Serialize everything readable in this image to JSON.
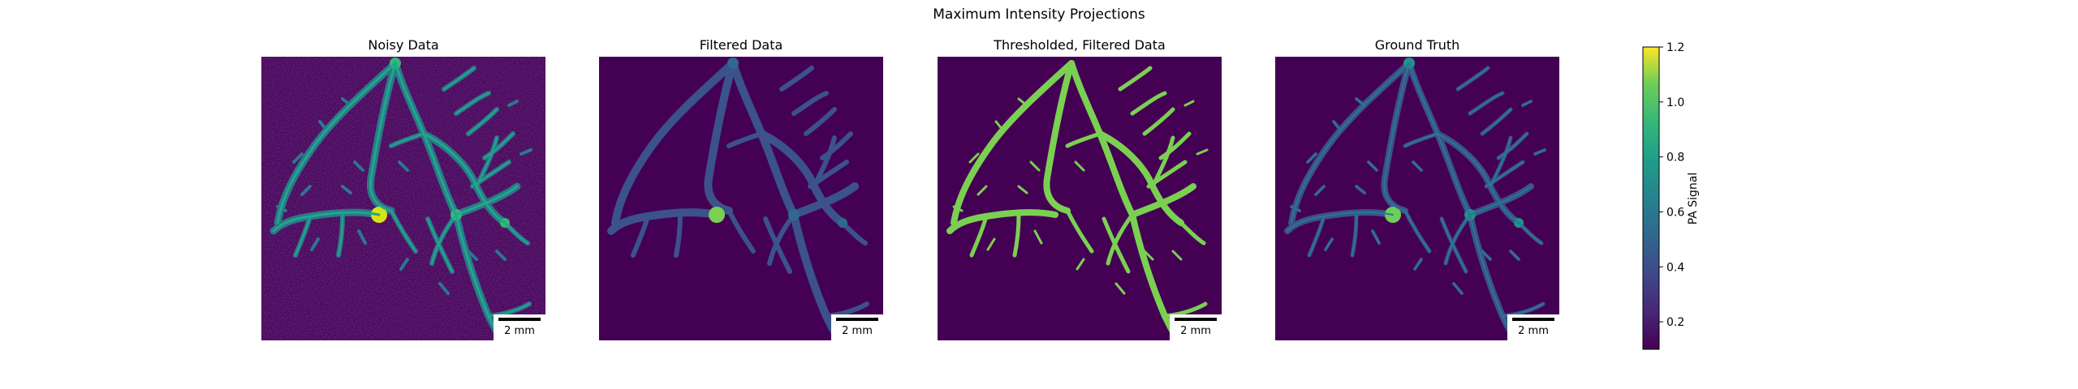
{
  "figure": {
    "title": "Maximum Intensity Projections"
  },
  "panels": [
    {
      "title": "Noisy Data",
      "scalebar": "2 mm"
    },
    {
      "title": "Filtered Data",
      "scalebar": "2 mm"
    },
    {
      "title": "Thresholded, Filtered Data",
      "scalebar": "2 mm"
    },
    {
      "title": "Ground Truth",
      "scalebar": "2 mm"
    }
  ],
  "colorbar": {
    "label": "PA Signal",
    "ticks": [
      "0.2",
      "0.4",
      "0.6",
      "0.8",
      "1.0",
      "1.2"
    ],
    "cmap": "viridis"
  },
  "colors": {
    "background_dark": "#440154",
    "vessel_blue": "#3b528b",
    "vessel_green": "#7ad151",
    "hotspot": "#d8e219"
  },
  "chart_data": {
    "type": "heatmap",
    "title": "Maximum Intensity Projections",
    "panels": [
      "Noisy Data",
      "Filtered Data",
      "Thresholded, Filtered Data",
      "Ground Truth"
    ],
    "colorbar_label": "PA Signal",
    "colorbar_range": [
      0.1,
      1.2
    ],
    "colorbar_ticks": [
      0.2,
      0.4,
      0.6,
      0.8,
      1.0,
      1.2
    ],
    "scalebar": "2 mm"
  }
}
